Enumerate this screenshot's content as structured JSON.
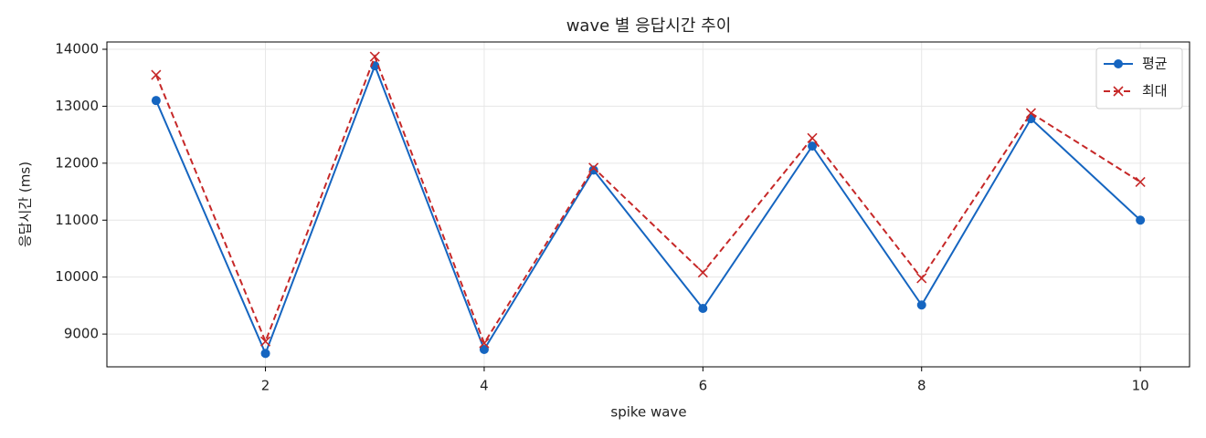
{
  "chart_data": {
    "type": "line",
    "title": "wave 별 응답시간 추이",
    "x_label": "spike wave",
    "y_label": "응답시간 (ms)",
    "x": [
      1,
      2,
      3,
      4,
      5,
      6,
      7,
      8,
      9,
      10
    ],
    "series": [
      {
        "name": "평균",
        "color": "#1565c0",
        "marker": "o",
        "linestyle": "solid",
        "values": [
          13100,
          8660,
          13710,
          8730,
          11880,
          9450,
          12300,
          9510,
          12780,
          11000
        ]
      },
      {
        "name": "최대",
        "color": "#c62828",
        "marker": "x",
        "linestyle": "dashed",
        "values": [
          13550,
          8870,
          13870,
          8840,
          11920,
          10080,
          12440,
          9980,
          12880,
          11670
        ]
      }
    ],
    "xlim": [
      0.55,
      10.45
    ],
    "ylim": [
      8425,
      14128
    ],
    "xticks": [
      2,
      4,
      6,
      8,
      10
    ],
    "yticks": [
      9000,
      10000,
      11000,
      12000,
      13000,
      14000
    ],
    "grid": true,
    "legend": "upper right"
  }
}
